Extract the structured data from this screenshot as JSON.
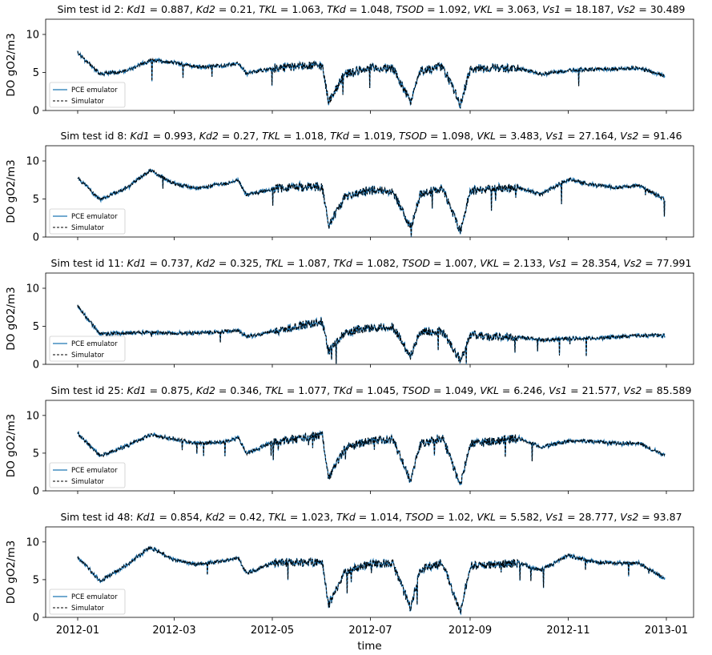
{
  "chart_data": [
    {
      "type": "line",
      "title_prefix": "Sim test id 2: ",
      "params": [
        {
          "name": "Kd1",
          "value": "0.887"
        },
        {
          "name": "Kd2",
          "value": "0.21"
        },
        {
          "name": "TKL",
          "value": "1.063"
        },
        {
          "name": "TKd",
          "value": "1.048"
        },
        {
          "name": "TSOD",
          "value": "1.092"
        },
        {
          "name": "VKL",
          "value": "3.063"
        },
        {
          "name": "Vs1",
          "value": "18.187"
        },
        {
          "name": "Vs2",
          "value": "30.489"
        }
      ],
      "ylabel": "DO gO2/m3",
      "ylim": [
        0,
        12
      ],
      "yticks": [
        "0",
        "5",
        "10"
      ],
      "series": [
        {
          "name": "PCE emulator",
          "color": "#1f77b4",
          "style": "solid"
        },
        {
          "name": "Simulator",
          "color": "#000000",
          "style": "dashed"
        }
      ],
      "x": [
        "2012-01-01",
        "2012-01-15",
        "2012-02-01",
        "2012-02-15",
        "2012-03-01",
        "2012-03-15",
        "2012-04-01",
        "2012-04-10",
        "2012-04-15",
        "2012-05-01",
        "2012-05-15",
        "2012-06-01",
        "2012-06-05",
        "2012-06-15",
        "2012-07-01",
        "2012-07-15",
        "2012-07-26",
        "2012-08-01",
        "2012-08-15",
        "2012-08-26",
        "2012-09-01",
        "2012-09-15",
        "2012-10-01",
        "2012-10-15",
        "2012-11-01",
        "2012-11-15",
        "2012-12-01",
        "2012-12-15",
        "2012-12-31"
      ],
      "y": [
        7.6,
        4.8,
        5.2,
        6.6,
        6.3,
        5.7,
        5.9,
        6.2,
        4.9,
        5.5,
        5.8,
        5.9,
        1.2,
        4.8,
        5.6,
        5.5,
        1.2,
        5.2,
        5.8,
        0.8,
        5.4,
        5.6,
        5.5,
        4.8,
        5.3,
        5.4,
        5.5,
        5.6,
        4.5
      ]
    },
    {
      "type": "line",
      "title_prefix": "Sim test id 8: ",
      "params": [
        {
          "name": "Kd1",
          "value": "0.993"
        },
        {
          "name": "Kd2",
          "value": "0.27"
        },
        {
          "name": "TKL",
          "value": "1.018"
        },
        {
          "name": "TKd",
          "value": "1.019"
        },
        {
          "name": "TSOD",
          "value": "1.098"
        },
        {
          "name": "VKL",
          "value": "3.483"
        },
        {
          "name": "Vs1",
          "value": "27.164"
        },
        {
          "name": "Vs2",
          "value": "91.46"
        }
      ],
      "ylabel": "DO gO2/m3",
      "ylim": [
        0,
        12
      ],
      "yticks": [
        "0",
        "5",
        "10"
      ],
      "series": [
        {
          "name": "PCE emulator",
          "color": "#1f77b4",
          "style": "solid"
        },
        {
          "name": "Simulator",
          "color": "#000000",
          "style": "dashed"
        }
      ],
      "x": [
        "2012-01-01",
        "2012-01-15",
        "2012-02-01",
        "2012-02-15",
        "2012-03-01",
        "2012-03-15",
        "2012-04-01",
        "2012-04-10",
        "2012-04-15",
        "2012-05-01",
        "2012-05-15",
        "2012-06-01",
        "2012-06-05",
        "2012-06-15",
        "2012-07-01",
        "2012-07-15",
        "2012-07-26",
        "2012-08-01",
        "2012-08-15",
        "2012-08-26",
        "2012-09-01",
        "2012-09-15",
        "2012-10-01",
        "2012-10-15",
        "2012-11-01",
        "2012-11-15",
        "2012-12-01",
        "2012-12-15",
        "2012-12-31"
      ],
      "y": [
        7.8,
        4.9,
        6.5,
        8.8,
        7.0,
        6.4,
        7.0,
        7.4,
        5.5,
        6.3,
        6.6,
        6.6,
        1.5,
        5.2,
        6.2,
        6.0,
        1.2,
        5.6,
        6.4,
        0.8,
        6.0,
        6.4,
        6.5,
        5.6,
        7.6,
        6.9,
        6.5,
        6.8,
        4.9
      ]
    },
    {
      "type": "line",
      "title_prefix": "Sim test id 11: ",
      "params": [
        {
          "name": "Kd1",
          "value": "0.737"
        },
        {
          "name": "Kd2",
          "value": "0.325"
        },
        {
          "name": "TKL",
          "value": "1.087"
        },
        {
          "name": "TKd",
          "value": "1.082"
        },
        {
          "name": "TSOD",
          "value": "1.007"
        },
        {
          "name": "VKL",
          "value": "2.133"
        },
        {
          "name": "Vs1",
          "value": "28.354"
        },
        {
          "name": "Vs2",
          "value": "77.991"
        }
      ],
      "ylabel": "DO gO2/m3",
      "ylim": [
        0,
        12
      ],
      "yticks": [
        "0",
        "5",
        "10"
      ],
      "series": [
        {
          "name": "PCE emulator",
          "color": "#1f77b4",
          "style": "solid"
        },
        {
          "name": "Simulator",
          "color": "#000000",
          "style": "dashed"
        }
      ],
      "x": [
        "2012-01-01",
        "2012-01-15",
        "2012-02-01",
        "2012-02-15",
        "2012-03-01",
        "2012-03-15",
        "2012-04-01",
        "2012-04-10",
        "2012-04-15",
        "2012-05-01",
        "2012-05-15",
        "2012-06-01",
        "2012-06-05",
        "2012-06-15",
        "2012-07-01",
        "2012-07-15",
        "2012-07-26",
        "2012-08-01",
        "2012-08-15",
        "2012-08-26",
        "2012-09-01",
        "2012-09-15",
        "2012-10-01",
        "2012-10-15",
        "2012-11-01",
        "2012-11-15",
        "2012-12-01",
        "2012-12-15",
        "2012-12-31"
      ],
      "y": [
        7.6,
        4.0,
        4.1,
        4.2,
        4.1,
        4.1,
        4.3,
        4.5,
        3.6,
        4.3,
        5.0,
        5.6,
        1.6,
        4.2,
        4.8,
        4.9,
        1.1,
        4.3,
        4.3,
        0.5,
        3.9,
        3.6,
        3.6,
        3.2,
        3.4,
        3.4,
        3.6,
        3.8,
        3.8
      ]
    },
    {
      "type": "line",
      "title_prefix": "Sim test id 25: ",
      "params": [
        {
          "name": "Kd1",
          "value": "0.875"
        },
        {
          "name": "Kd2",
          "value": "0.346"
        },
        {
          "name": "TKL",
          "value": "1.077"
        },
        {
          "name": "TKd",
          "value": "1.045"
        },
        {
          "name": "TSOD",
          "value": "1.049"
        },
        {
          "name": "VKL",
          "value": "6.246"
        },
        {
          "name": "Vs1",
          "value": "21.577"
        },
        {
          "name": "Vs2",
          "value": "85.589"
        }
      ],
      "ylabel": "DO gO2/m3",
      "ylim": [
        0,
        12
      ],
      "yticks": [
        "0",
        "5",
        "10"
      ],
      "series": [
        {
          "name": "PCE emulator",
          "color": "#1f77b4",
          "style": "solid"
        },
        {
          "name": "Simulator",
          "color": "#000000",
          "style": "dashed"
        }
      ],
      "x": [
        "2012-01-01",
        "2012-01-15",
        "2012-02-01",
        "2012-02-15",
        "2012-03-01",
        "2012-03-15",
        "2012-04-01",
        "2012-04-10",
        "2012-04-15",
        "2012-05-01",
        "2012-05-15",
        "2012-06-01",
        "2012-06-05",
        "2012-06-15",
        "2012-07-01",
        "2012-07-15",
        "2012-07-26",
        "2012-08-01",
        "2012-08-15",
        "2012-08-26",
        "2012-09-01",
        "2012-09-15",
        "2012-10-01",
        "2012-10-15",
        "2012-11-01",
        "2012-11-15",
        "2012-12-01",
        "2012-12-15",
        "2012-12-31"
      ],
      "y": [
        7.6,
        4.6,
        6.0,
        7.4,
        6.9,
        6.3,
        6.5,
        7.0,
        5.0,
        6.4,
        6.9,
        7.4,
        1.8,
        5.6,
        6.7,
        6.8,
        1.4,
        6.2,
        7.0,
        0.7,
        6.2,
        6.6,
        7.0,
        5.8,
        6.6,
        6.6,
        6.3,
        6.3,
        4.7
      ]
    },
    {
      "type": "line",
      "title_prefix": "Sim test id 48: ",
      "params": [
        {
          "name": "Kd1",
          "value": "0.854"
        },
        {
          "name": "Kd2",
          "value": "0.42"
        },
        {
          "name": "TKL",
          "value": "1.023"
        },
        {
          "name": "TKd",
          "value": "1.014"
        },
        {
          "name": "TSOD",
          "value": "1.02"
        },
        {
          "name": "VKL",
          "value": "5.582"
        },
        {
          "name": "Vs1",
          "value": "28.777"
        },
        {
          "name": "Vs2",
          "value": "93.87"
        }
      ],
      "ylabel": "DO gO2/m3",
      "ylim": [
        0,
        12
      ],
      "yticks": [
        "0",
        "5",
        "10"
      ],
      "xticks": [
        "2012-01",
        "2012-03",
        "2012-05",
        "2012-07",
        "2012-09",
        "2012-11",
        "2013-01"
      ],
      "xlabel": "time",
      "series": [
        {
          "name": "PCE emulator",
          "color": "#1f77b4",
          "style": "solid"
        },
        {
          "name": "Simulator",
          "color": "#000000",
          "style": "dashed"
        }
      ],
      "x": [
        "2012-01-01",
        "2012-01-15",
        "2012-02-01",
        "2012-02-15",
        "2012-03-01",
        "2012-03-15",
        "2012-04-01",
        "2012-04-10",
        "2012-04-15",
        "2012-05-01",
        "2012-05-15",
        "2012-06-01",
        "2012-06-05",
        "2012-06-15",
        "2012-07-01",
        "2012-07-15",
        "2012-07-26",
        "2012-08-01",
        "2012-08-15",
        "2012-08-26",
        "2012-09-01",
        "2012-09-15",
        "2012-10-01",
        "2012-10-15",
        "2012-11-01",
        "2012-11-15",
        "2012-12-01",
        "2012-12-15",
        "2012-12-31"
      ],
      "y": [
        8.0,
        4.8,
        7.0,
        9.3,
        7.6,
        7.0,
        7.5,
        7.8,
        5.8,
        7.2,
        7.3,
        7.4,
        1.6,
        6.0,
        7.2,
        7.1,
        1.2,
        6.4,
        7.2,
        0.6,
        6.8,
        7.0,
        7.2,
        6.2,
        8.2,
        7.4,
        7.2,
        7.2,
        5.1
      ]
    }
  ]
}
